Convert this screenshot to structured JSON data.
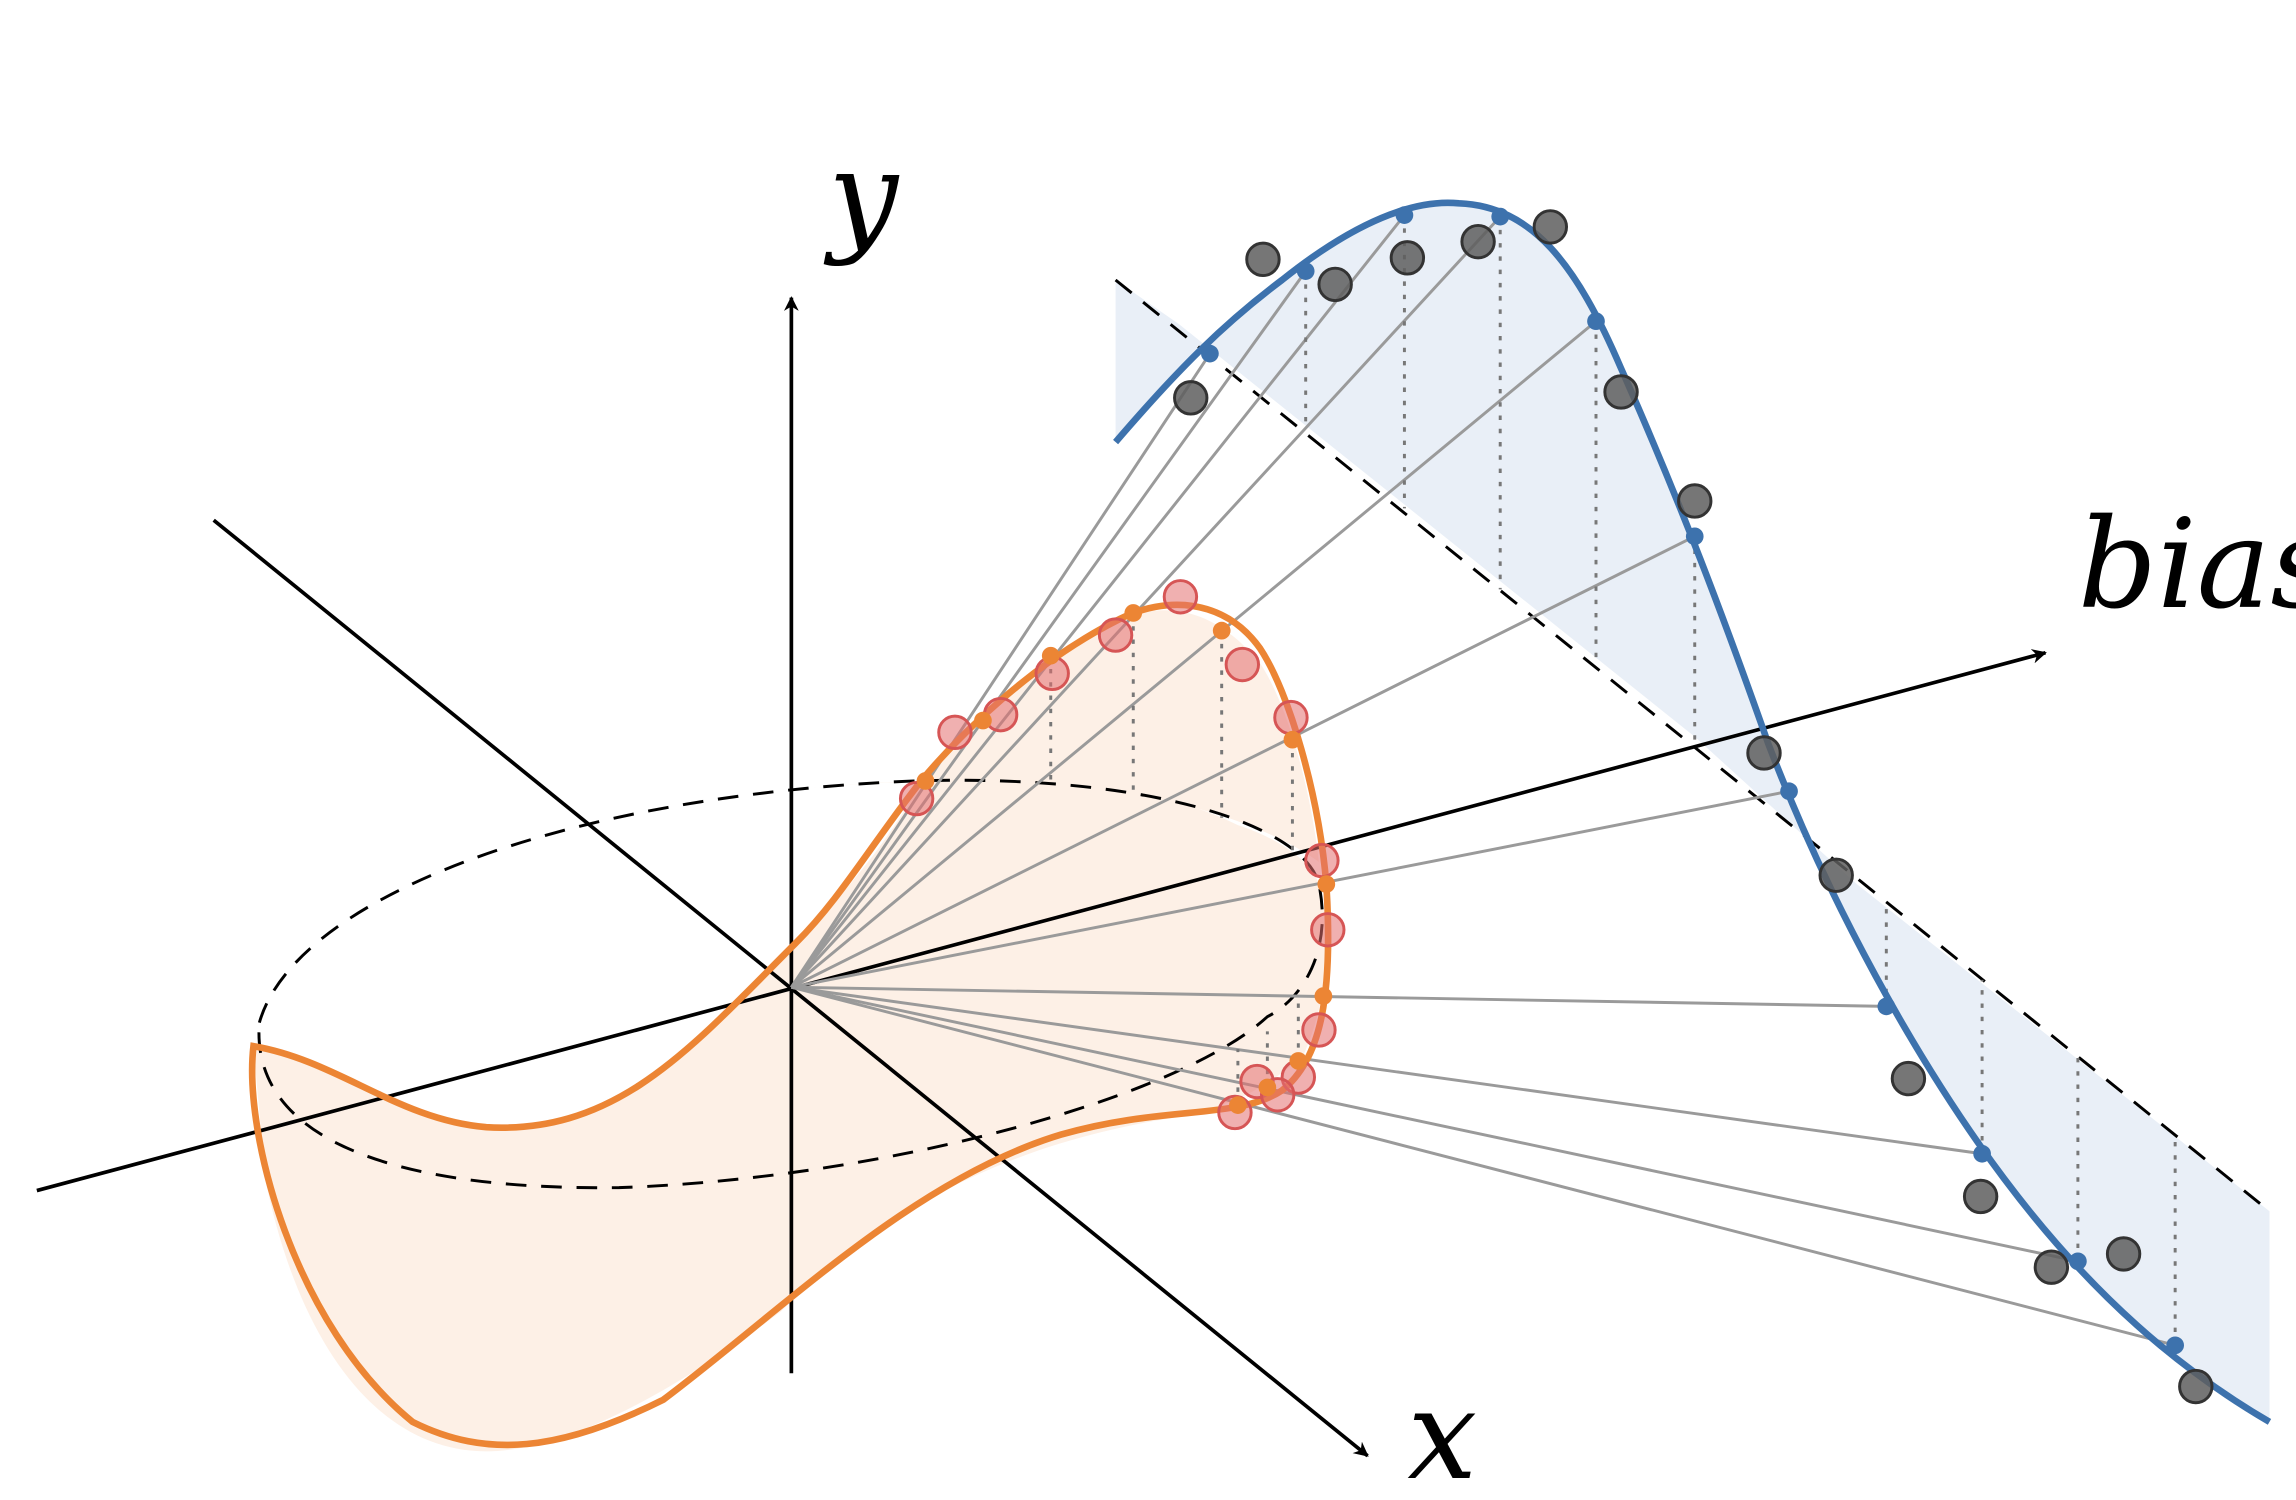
{
  "axes": {
    "x_label": "x",
    "y_label": "y",
    "bias_label": "bias"
  },
  "colors": {
    "axis": "#000000",
    "orange_curve": "#ec8534",
    "orange_fill": "#fdf0e6",
    "orange_points": "#e97f81",
    "blue_curve": "#3d72ad",
    "blue_fill": "#e9eff7",
    "gray_points": "#5e5e5e",
    "projection_lines": "#9a9a9a"
  }
}
